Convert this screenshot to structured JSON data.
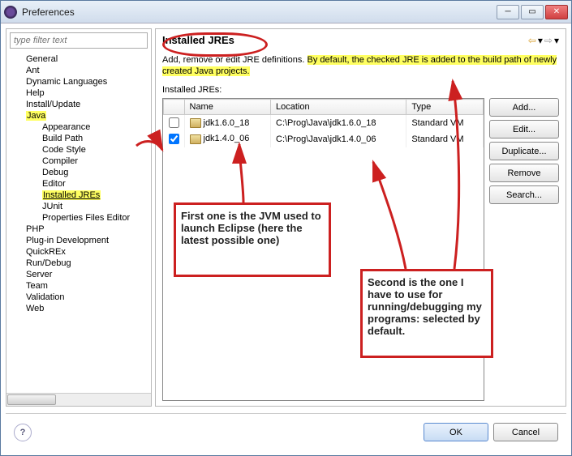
{
  "window": {
    "title": "Preferences"
  },
  "filter": {
    "placeholder": "type filter text"
  },
  "tree": {
    "items": [
      {
        "label": "General",
        "depth": 0
      },
      {
        "label": "Ant",
        "depth": 0
      },
      {
        "label": "Dynamic Languages",
        "depth": 0
      },
      {
        "label": "Help",
        "depth": 0
      },
      {
        "label": "Install/Update",
        "depth": 0
      },
      {
        "label": "Java",
        "depth": 0,
        "hl": true
      },
      {
        "label": "Appearance",
        "depth": 1
      },
      {
        "label": "Build Path",
        "depth": 1
      },
      {
        "label": "Code Style",
        "depth": 1
      },
      {
        "label": "Compiler",
        "depth": 1
      },
      {
        "label": "Debug",
        "depth": 1
      },
      {
        "label": "Editor",
        "depth": 1
      },
      {
        "label": "Installed JREs",
        "depth": 1,
        "sel": true
      },
      {
        "label": "JUnit",
        "depth": 1
      },
      {
        "label": "Properties Files Editor",
        "depth": 1
      },
      {
        "label": "PHP",
        "depth": 0
      },
      {
        "label": "Plug-in Development",
        "depth": 0
      },
      {
        "label": "QuickREx",
        "depth": 0
      },
      {
        "label": "Run/Debug",
        "depth": 0
      },
      {
        "label": "Server",
        "depth": 0
      },
      {
        "label": "Team",
        "depth": 0
      },
      {
        "label": "Validation",
        "depth": 0
      },
      {
        "label": "Web",
        "depth": 0
      }
    ]
  },
  "page": {
    "title": "Installed JREs",
    "desc_plain": "Add, remove or edit JRE definitions. ",
    "desc_hl": "By default, the checked JRE is added to the build path of newly created Java projects.",
    "subhead": "Installed JREs:"
  },
  "table": {
    "cols": {
      "c0": "",
      "c1": "Name",
      "c2": "Location",
      "c3": "Type"
    },
    "rows": [
      {
        "checked": false,
        "name": "jdk1.6.0_18",
        "location": "C:\\Prog\\Java\\jdk1.6.0_18",
        "type": "Standard VM"
      },
      {
        "checked": true,
        "name": "jdk1.4.0_06",
        "location": "C:\\Prog\\Java\\jdk1.4.0_06",
        "type": "Standard VM"
      }
    ]
  },
  "buttons": {
    "add": "Add...",
    "edit": "Edit...",
    "duplicate": "Duplicate...",
    "remove": "Remove",
    "search": "Search..."
  },
  "footer": {
    "ok": "OK",
    "cancel": "Cancel"
  },
  "annotations": {
    "box1": "First one is the JVM used to launch Eclipse (here the latest possible one)",
    "box2": "Second is the one I have to use for running/debugging my programs: selected by default.",
    "arrow_color": "#cc2020"
  }
}
